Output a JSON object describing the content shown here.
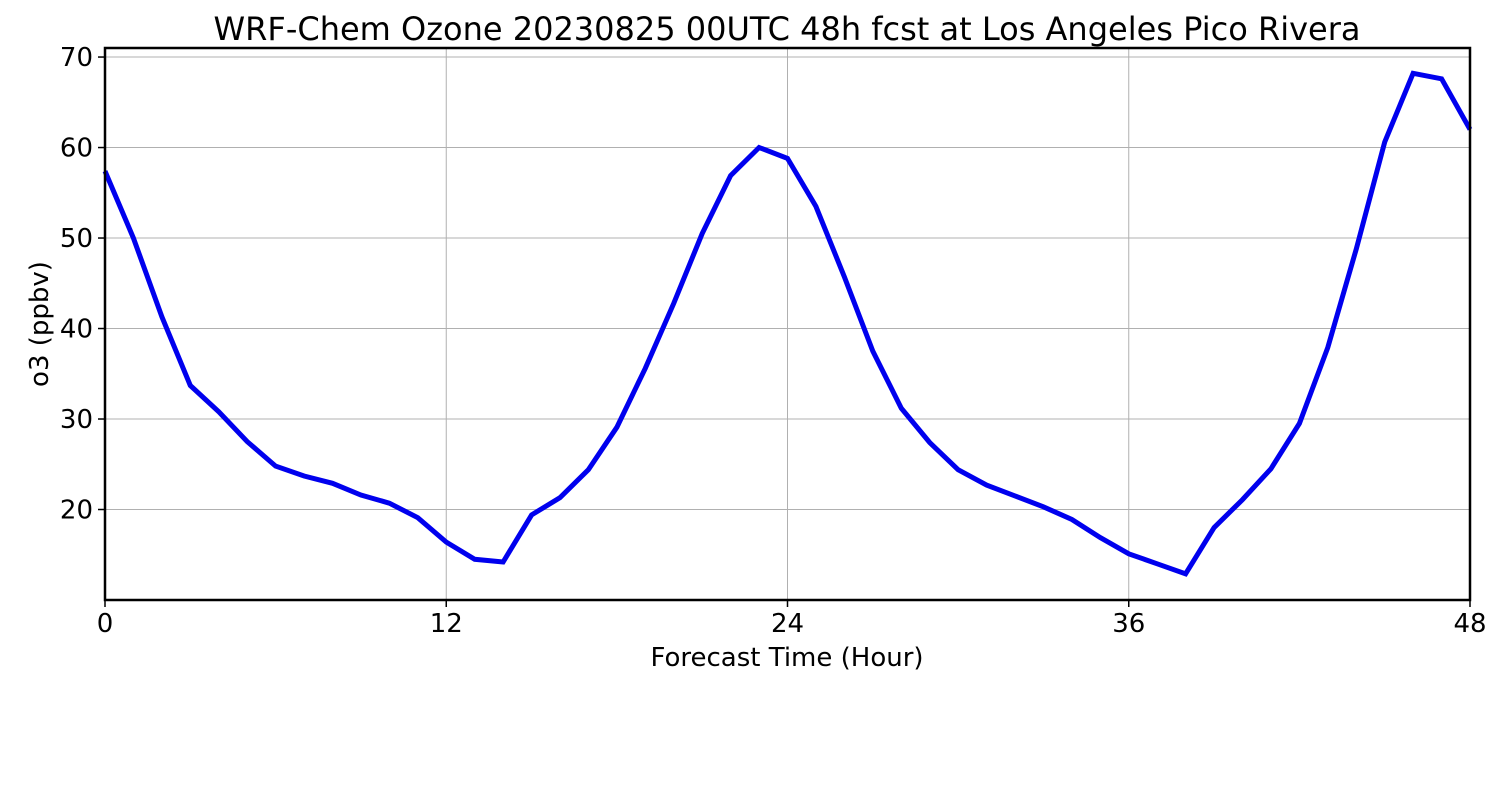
{
  "chart_data": {
    "type": "line",
    "title": "WRF-Chem Ozone  20230825 00UTC 48h fcst at Los Angeles Pico Rivera",
    "xlabel": "Forecast Time (Hour)",
    "ylabel": "o3  (ppbv)",
    "xlim": [
      0,
      48
    ],
    "ylim": [
      10,
      71
    ],
    "xticks": [
      0,
      12,
      24,
      36,
      48
    ],
    "yticks": [
      20,
      30,
      40,
      50,
      60,
      70
    ],
    "grid": true,
    "line_color": "#0000ee",
    "series": [
      {
        "x": [
          0,
          1,
          2,
          3,
          4,
          5,
          6,
          7,
          8,
          9,
          10,
          11,
          12,
          13,
          14,
          15,
          16,
          17,
          18,
          19,
          20,
          21,
          22,
          23,
          24,
          25,
          26,
          27,
          28,
          29,
          30,
          31,
          32,
          33,
          34,
          35,
          36,
          37,
          38,
          39,
          40,
          41,
          42,
          43,
          44,
          45,
          46,
          47,
          48
        ],
        "values": [
          57.4,
          50.0,
          41.3,
          33.7,
          30.8,
          27.5,
          24.8,
          23.7,
          22.9,
          21.6,
          20.7,
          19.1,
          16.4,
          14.5,
          14.2,
          19.4,
          21.3,
          24.4,
          29.1,
          35.6,
          42.8,
          50.5,
          56.9,
          60.0,
          58.8,
          53.5,
          45.7,
          37.5,
          31.2,
          27.4,
          24.4,
          22.7,
          21.5,
          20.3,
          18.9,
          16.9,
          15.1,
          14.0,
          12.9,
          18.0,
          21.1,
          24.5,
          29.5,
          37.9,
          48.8,
          60.6,
          68.2,
          67.6,
          62.0
        ]
      }
    ]
  }
}
